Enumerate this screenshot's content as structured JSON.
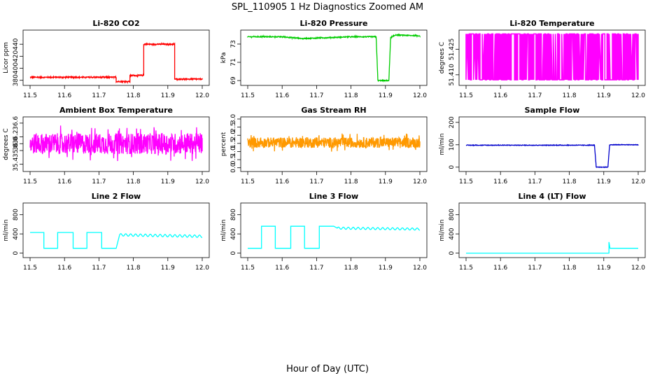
{
  "figure": {
    "title": "SPL_110905 1 Hz Diagnostics Zoomed AM",
    "xlabel": "Hour of Day (UTC)"
  },
  "chart_data": [
    {
      "type": "line",
      "title": "Li-820 CO2",
      "ylabel": "Licor ppm",
      "color": "#ff0000",
      "x_ticks": [
        "11.5",
        "11.6",
        "11.7",
        "11.8",
        "11.9",
        "12.0"
      ],
      "xlim": [
        11.5,
        12.0
      ],
      "ylim": [
        375,
        460
      ],
      "y_ticks": [
        {
          "value": 380,
          "label": "380"
        },
        {
          "value": 400,
          "label": "400"
        },
        {
          "value": 420,
          "label": "420"
        },
        {
          "value": 440,
          "label": "440"
        }
      ],
      "series": [
        {
          "x": [
            11.5,
            11.75,
            11.75,
            11.79,
            11.79,
            11.83,
            11.83,
            11.92,
            11.92,
            12.0
          ],
          "y": [
            385,
            385,
            378,
            378,
            388,
            388,
            440,
            440,
            382,
            382
          ]
        }
      ],
      "noise": 1.2
    },
    {
      "type": "line",
      "title": "Li-820 Pressure",
      "ylabel": "kPa",
      "color": "#00cc00",
      "x_ticks": [
        "11.5",
        "11.6",
        "11.7",
        "11.8",
        "11.9",
        "12.0"
      ],
      "xlim": [
        11.5,
        12.0
      ],
      "ylim": [
        68.7,
        74.3
      ],
      "y_ticks": [
        {
          "value": 69,
          "label": "69"
        },
        {
          "value": 71,
          "label": "71"
        },
        {
          "value": 73,
          "label": "73"
        }
      ],
      "series": [
        {
          "x": [
            11.5,
            11.6,
            11.66,
            11.8,
            11.873,
            11.878,
            11.91,
            11.915,
            11.93,
            12.0
          ],
          "y": [
            73.8,
            73.8,
            73.6,
            73.8,
            73.8,
            69.0,
            69.0,
            73.7,
            74.0,
            73.9
          ]
        }
      ],
      "noise": 0.06
    },
    {
      "type": "line",
      "title": "Li-820 Temperature",
      "ylabel": "degrees C",
      "color": "#ff00ff",
      "x_ticks": [
        "11.5",
        "11.6",
        "11.7",
        "11.8",
        "11.9",
        "12.0"
      ],
      "xlim": [
        11.5,
        12.0
      ],
      "ylim": [
        51.405,
        51.435
      ],
      "y_ticks": [
        {
          "value": 51.41,
          "label": "51.410"
        },
        {
          "value": 51.425,
          "label": "51.425"
        }
      ],
      "series": [
        {
          "x": [
            11.5,
            12.0
          ],
          "y": [
            51.42,
            51.42
          ]
        }
      ],
      "toggle": {
        "low": 51.407,
        "high": 51.434
      },
      "noise": 0
    },
    {
      "type": "line",
      "title": "Ambient Box Temperature",
      "ylabel": "degrees C",
      "color": "#ff00ff",
      "x_ticks": [
        "11.5",
        "11.6",
        "11.7",
        "11.8",
        "11.9",
        "12.0"
      ],
      "xlim": [
        11.5,
        12.0
      ],
      "ylim": [
        35.25,
        36.72
      ],
      "y_ticks": [
        {
          "value": 35.4,
          "label": "35.4"
        },
        {
          "value": 35.8,
          "label": "35.8"
        },
        {
          "value": 36.0,
          "label": "36.0"
        },
        {
          "value": 36.2,
          "label": "36.2"
        },
        {
          "value": 36.6,
          "label": "36.6"
        }
      ],
      "series": [
        {
          "x": [
            11.5,
            12.0
          ],
          "y": [
            36.0,
            36.0
          ]
        }
      ],
      "noise": 0.38
    },
    {
      "type": "line",
      "title": "Gas Stream RH",
      "ylabel": "percent",
      "color": "#ff9900",
      "x_ticks": [
        "11.5",
        "11.6",
        "11.7",
        "11.8",
        "11.9",
        "12.0"
      ],
      "xlim": [
        11.5,
        12.0
      ],
      "ylim": [
        -0.1,
        3.0
      ],
      "y_ticks": [
        {
          "value": 0.0,
          "label": "0.0"
        },
        {
          "value": 0.5,
          "label": "0.5"
        },
        {
          "value": 1.0,
          "label": "1.0"
        },
        {
          "value": 1.5,
          "label": "1.5"
        },
        {
          "value": 2.0,
          "label": "2.0"
        },
        {
          "value": 2.5,
          "label": "2.5"
        },
        {
          "value": 3.0,
          "label": "3.0"
        }
      ],
      "series": [
        {
          "x": [
            11.5,
            12.0
          ],
          "y": [
            1.55,
            1.55
          ]
        }
      ],
      "noise": 0.4
    },
    {
      "type": "line",
      "title": "Sample Flow",
      "ylabel": "ml/min",
      "color": "#0000cc",
      "x_ticks": [
        "11.5",
        "11.6",
        "11.7",
        "11.8",
        "11.9",
        "12.0"
      ],
      "xlim": [
        11.5,
        12.0
      ],
      "ylim": [
        -10,
        215
      ],
      "y_ticks": [
        {
          "value": 0,
          "label": "0"
        },
        {
          "value": 100,
          "label": "100"
        },
        {
          "value": 200,
          "label": "200"
        }
      ],
      "series": [
        {
          "x": [
            11.5,
            11.873,
            11.878,
            11.912,
            11.917,
            12.0
          ],
          "y": [
            98,
            98,
            0,
            0,
            100,
            100
          ]
        }
      ],
      "noise": 1.5
    },
    {
      "type": "line",
      "title": "Line 2 Flow",
      "ylabel": "ml/min",
      "color": "#00ffff",
      "x_ticks": [
        "11.5",
        "11.6",
        "11.7",
        "11.8",
        "11.9",
        "12.0"
      ],
      "xlim": [
        11.5,
        12.0
      ],
      "ylim": [
        -50,
        1000
      ],
      "y_ticks": [
        {
          "value": 0,
          "label": "0"
        },
        {
          "value": 400,
          "label": "400"
        },
        {
          "value": 800,
          "label": "800"
        }
      ],
      "series": [
        {
          "x": [
            11.5,
            11.54,
            11.54,
            11.58,
            11.58,
            11.625,
            11.625,
            11.665,
            11.665,
            11.708,
            11.708,
            11.75,
            11.76,
            12.0
          ],
          "y": [
            430,
            430,
            100,
            100,
            430,
            430,
            100,
            100,
            430,
            430,
            100,
            100,
            380,
            350
          ]
        }
      ],
      "wiggle": {
        "from": 11.76,
        "to": 12.0,
        "amp": 25
      },
      "noise": 0
    },
    {
      "type": "line",
      "title": "Line 3 Flow",
      "ylabel": "ml/min",
      "color": "#00ffff",
      "x_ticks": [
        "11.5",
        "11.6",
        "11.7",
        "11.8",
        "11.9",
        "12.0"
      ],
      "xlim": [
        11.5,
        12.0
      ],
      "ylim": [
        -50,
        1000
      ],
      "y_ticks": [
        {
          "value": 0,
          "label": "0"
        },
        {
          "value": 400,
          "label": "400"
        },
        {
          "value": 800,
          "label": "800"
        }
      ],
      "series": [
        {
          "x": [
            11.5,
            11.54,
            11.54,
            11.58,
            11.58,
            11.625,
            11.625,
            11.665,
            11.665,
            11.708,
            11.708,
            11.75,
            11.76,
            12.0
          ],
          "y": [
            100,
            100,
            560,
            560,
            100,
            100,
            560,
            560,
            100,
            100,
            560,
            560,
            520,
            500
          ]
        }
      ],
      "wiggle": {
        "from": 11.76,
        "to": 12.0,
        "amp": 22
      },
      "noise": 0
    },
    {
      "type": "line",
      "title": "Line 4 (LT) Flow",
      "ylabel": "ml/min",
      "color": "#00ffff",
      "x_ticks": [
        "11.5",
        "11.6",
        "11.7",
        "11.8",
        "11.9",
        "12.0"
      ],
      "xlim": [
        11.5,
        12.0
      ],
      "ylim": [
        -50,
        1000
      ],
      "y_ticks": [
        {
          "value": 0,
          "label": "0"
        },
        {
          "value": 400,
          "label": "400"
        },
        {
          "value": 800,
          "label": "800"
        }
      ],
      "series": [
        {
          "x": [
            11.5,
            11.915,
            11.915,
            11.918,
            11.918,
            12.0
          ],
          "y": [
            0,
            0,
            230,
            100,
            100,
            100
          ]
        }
      ],
      "noise": 0
    }
  ]
}
